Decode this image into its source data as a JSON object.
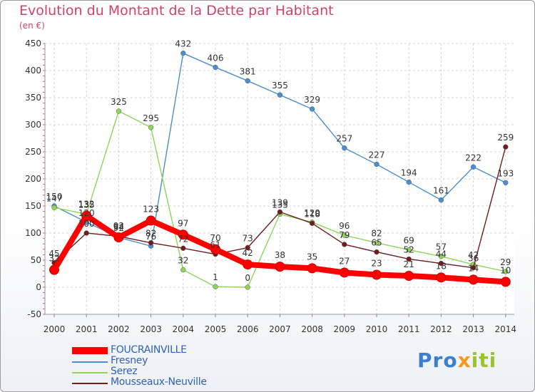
{
  "chart_data": {
    "type": "line",
    "title": "Evolution du Montant de la Dette par Habitant",
    "subtitle": "(en €)",
    "xlabel": "",
    "ylabel": "",
    "ylim": [
      -50,
      450
    ],
    "yticks": [
      -50,
      0,
      50,
      100,
      150,
      200,
      250,
      300,
      350,
      400,
      450
    ],
    "x": [
      "2000",
      "2001",
      "2002",
      "2003",
      "2004",
      "2005",
      "2006",
      "2007",
      "2008",
      "2009",
      "2010",
      "2011",
      "2012",
      "2013",
      "2014"
    ],
    "series": [
      {
        "name": "Fresney",
        "color": "#4a8fcf",
        "values": [
          150,
          120,
          92,
          76,
          432,
          406,
          381,
          355,
          329,
          257,
          227,
          194,
          161,
          222,
          193
        ]
      },
      {
        "name": "Serez",
        "color": "#8ed65a",
        "values": [
          147,
          135,
          325,
          295,
          32,
          1,
          0,
          135,
          120,
          96,
          82,
          69,
          57,
          42,
          29
        ]
      },
      {
        "name": "Mousseaux-Neuville",
        "color": "#6e1c1c",
        "values": [
          45,
          100,
          94,
          82,
          72,
          61,
          73,
          139,
          118,
          79,
          65,
          52,
          44,
          36,
          259
        ]
      },
      {
        "name": "FOUCRAINVILLE",
        "color": "#ff0000",
        "values": [
          32,
          132,
          92,
          123,
          97,
          70,
          42,
          38,
          35,
          27,
          23,
          21,
          18,
          14,
          10
        ]
      }
    ],
    "legend_position": "bottom-left"
  },
  "logo_text": {
    "part1": "Pro",
    "part2": "x",
    "part3": "iti"
  }
}
